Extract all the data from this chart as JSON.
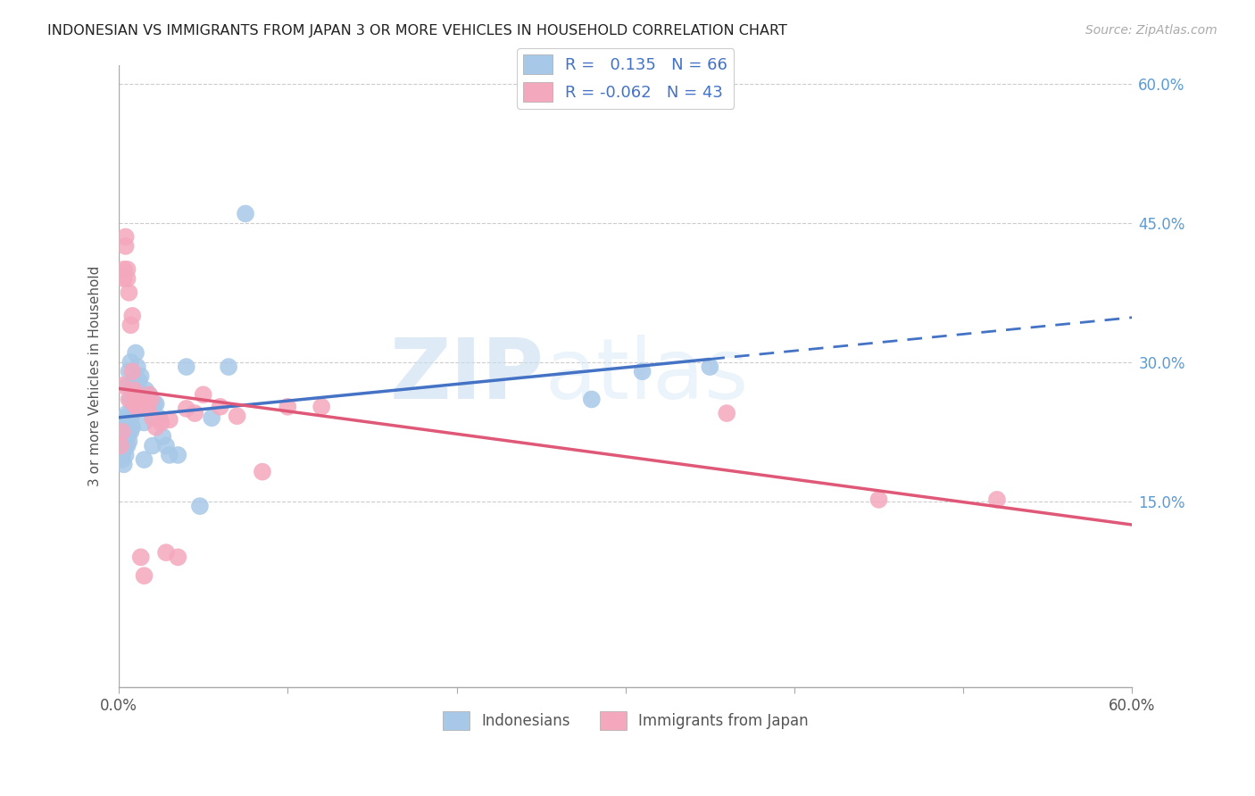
{
  "title": "INDONESIAN VS IMMIGRANTS FROM JAPAN 3 OR MORE VEHICLES IN HOUSEHOLD CORRELATION CHART",
  "source": "Source: ZipAtlas.com",
  "ylabel": "3 or more Vehicles in Household",
  "xlim": [
    0.0,
    0.6
  ],
  "ylim": [
    -0.05,
    0.62
  ],
  "r_indonesian": 0.135,
  "n_indonesian": 66,
  "r_japan": -0.062,
  "n_japan": 43,
  "color_indonesian": "#a8c8e8",
  "color_japan": "#f4a8be",
  "line_color_indonesian": "#4472c4",
  "line_color_japan": "#e05878",
  "watermark_zip": "ZIP",
  "watermark_atlas": "atlas",
  "legend_labels": [
    "Indonesians",
    "Immigrants from Japan"
  ],
  "indonesian_x": [
    0.001,
    0.001,
    0.002,
    0.002,
    0.002,
    0.002,
    0.003,
    0.003,
    0.003,
    0.003,
    0.003,
    0.004,
    0.004,
    0.004,
    0.004,
    0.004,
    0.005,
    0.005,
    0.005,
    0.005,
    0.005,
    0.006,
    0.006,
    0.006,
    0.006,
    0.007,
    0.007,
    0.007,
    0.007,
    0.008,
    0.008,
    0.008,
    0.009,
    0.009,
    0.01,
    0.01,
    0.01,
    0.011,
    0.011,
    0.012,
    0.012,
    0.013,
    0.013,
    0.014,
    0.015,
    0.015,
    0.016,
    0.017,
    0.018,
    0.019,
    0.02,
    0.021,
    0.022,
    0.024,
    0.026,
    0.028,
    0.03,
    0.035,
    0.04,
    0.048,
    0.055,
    0.065,
    0.075,
    0.28,
    0.31,
    0.35
  ],
  "indonesian_y": [
    0.215,
    0.225,
    0.195,
    0.2,
    0.21,
    0.23,
    0.19,
    0.205,
    0.215,
    0.225,
    0.24,
    0.2,
    0.21,
    0.22,
    0.23,
    0.24,
    0.21,
    0.22,
    0.23,
    0.245,
    0.275,
    0.215,
    0.225,
    0.24,
    0.29,
    0.225,
    0.24,
    0.26,
    0.3,
    0.23,
    0.25,
    0.275,
    0.25,
    0.28,
    0.25,
    0.265,
    0.31,
    0.27,
    0.295,
    0.255,
    0.28,
    0.265,
    0.285,
    0.26,
    0.195,
    0.235,
    0.27,
    0.26,
    0.265,
    0.255,
    0.21,
    0.255,
    0.255,
    0.24,
    0.22,
    0.21,
    0.2,
    0.2,
    0.295,
    0.145,
    0.24,
    0.295,
    0.46,
    0.26,
    0.29,
    0.295
  ],
  "japan_x": [
    0.001,
    0.002,
    0.002,
    0.003,
    0.003,
    0.004,
    0.004,
    0.005,
    0.005,
    0.006,
    0.006,
    0.007,
    0.008,
    0.008,
    0.009,
    0.009,
    0.01,
    0.011,
    0.012,
    0.013,
    0.014,
    0.015,
    0.016,
    0.017,
    0.018,
    0.019,
    0.02,
    0.022,
    0.025,
    0.028,
    0.03,
    0.035,
    0.04,
    0.045,
    0.05,
    0.06,
    0.07,
    0.085,
    0.1,
    0.12,
    0.36,
    0.45,
    0.52
  ],
  "japan_y": [
    0.21,
    0.225,
    0.275,
    0.39,
    0.4,
    0.425,
    0.435,
    0.39,
    0.4,
    0.375,
    0.26,
    0.34,
    0.35,
    0.29,
    0.255,
    0.27,
    0.265,
    0.25,
    0.255,
    0.09,
    0.255,
    0.07,
    0.255,
    0.25,
    0.265,
    0.26,
    0.24,
    0.23,
    0.235,
    0.095,
    0.238,
    0.09,
    0.25,
    0.245,
    0.265,
    0.252,
    0.242,
    0.182,
    0.252,
    0.252,
    0.245,
    0.152,
    0.152
  ]
}
